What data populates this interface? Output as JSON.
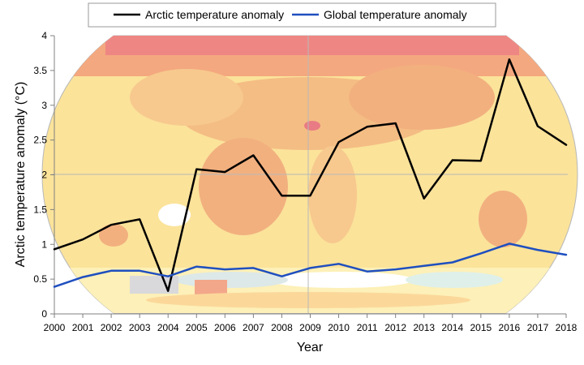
{
  "chart_data": {
    "type": "line",
    "title": "",
    "xlabel": "Year",
    "ylabel": "Arctic temperature anomaly (°C)",
    "ylim": [
      0,
      4
    ],
    "yticks": [
      0,
      0.5,
      1,
      1.5,
      2,
      2.5,
      3,
      3.5,
      4
    ],
    "ytick_labels": [
      "0",
      "0.5",
      "1",
      "1.5",
      "2",
      "2.5",
      "3",
      "3.5",
      "4"
    ],
    "x": [
      "2000",
      "2001",
      "2002",
      "2003",
      "2004",
      "2005",
      "2006",
      "2007",
      "2008",
      "2009",
      "2010",
      "2011",
      "2012",
      "2013",
      "2014",
      "2015",
      "2016",
      "2017",
      "2018"
    ],
    "grid": false,
    "legend_position": "top",
    "background": "world temperature anomaly map",
    "series": [
      {
        "name": "Arctic temperature anomaly",
        "color": "#000000",
        "values": [
          0.93,
          1.07,
          1.28,
          1.36,
          0.33,
          2.08,
          2.04,
          2.28,
          1.7,
          1.7,
          2.47,
          2.69,
          2.74,
          1.66,
          2.21,
          2.2,
          3.66,
          2.7,
          2.43
        ]
      },
      {
        "name": "Global temperature anomaly",
        "color": "#1f4fbf",
        "values": [
          0.39,
          0.53,
          0.62,
          0.62,
          0.54,
          0.68,
          0.64,
          0.66,
          0.54,
          0.66,
          0.72,
          0.61,
          0.64,
          0.69,
          0.74,
          0.87,
          1.01,
          0.92,
          0.85
        ]
      }
    ]
  }
}
